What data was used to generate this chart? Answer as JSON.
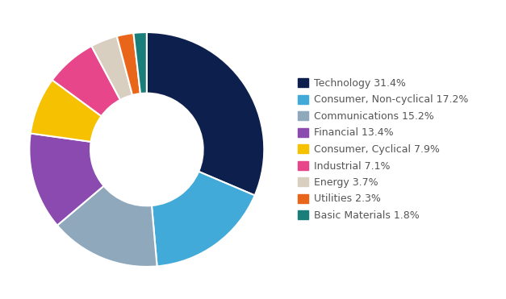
{
  "labels": [
    "Technology 31.4%",
    "Consumer, Non-cyclical 17.2%",
    "Communications 15.2%",
    "Financial 13.4%",
    "Consumer, Cyclical 7.9%",
    "Industrial 7.1%",
    "Energy 3.7%",
    "Utilities 2.3%",
    "Basic Materials 1.8%"
  ],
  "values": [
    31.4,
    17.2,
    15.2,
    13.4,
    7.9,
    7.1,
    3.7,
    2.3,
    1.8
  ],
  "colors": [
    "#0d1f4c",
    "#42aad8",
    "#8fa8bb",
    "#8b4aaf",
    "#f5c100",
    "#e8468a",
    "#d9cfc0",
    "#e8651a",
    "#1a7f7a"
  ],
  "background_color": "#ffffff",
  "legend_fontsize": 9,
  "startangle": 90,
  "donut_width": 0.52
}
